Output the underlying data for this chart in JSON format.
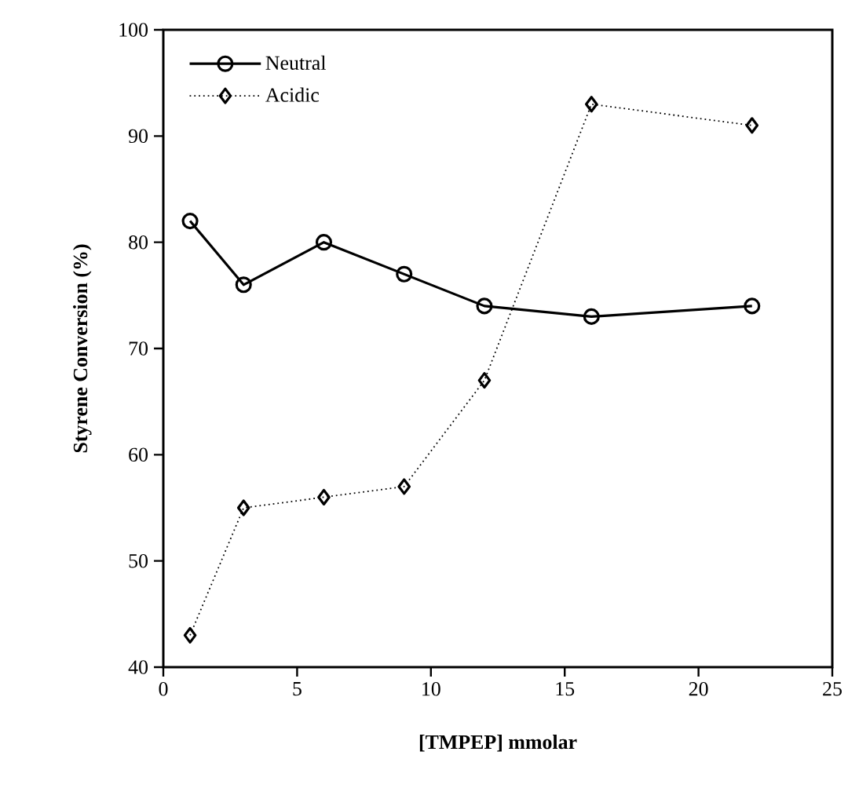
{
  "chart_data": {
    "type": "line",
    "xlabel": "[TMPEP]  mmolar",
    "ylabel": "Styrene  Conversion  (%)",
    "x": [
      1,
      3,
      6,
      9,
      12,
      16,
      22
    ],
    "series": [
      {
        "name": "Neutral",
        "color": "#000000",
        "values": [
          82,
          76,
          80,
          77,
          74,
          73,
          74
        ],
        "marker": "circle",
        "line_style": "solid"
      },
      {
        "name": "Acidic",
        "color": "#000000",
        "values": [
          43,
          55,
          56,
          57,
          67,
          93,
          91
        ],
        "marker": "diamond",
        "line_style": "dotted"
      }
    ],
    "xlim": [
      0,
      25
    ],
    "xticks": [
      0,
      5,
      10,
      15,
      20,
      25
    ],
    "ylim": [
      40,
      100
    ],
    "yticks": [
      40,
      50,
      60,
      70,
      80,
      90,
      100
    ],
    "grid": false,
    "legend": "top left"
  }
}
